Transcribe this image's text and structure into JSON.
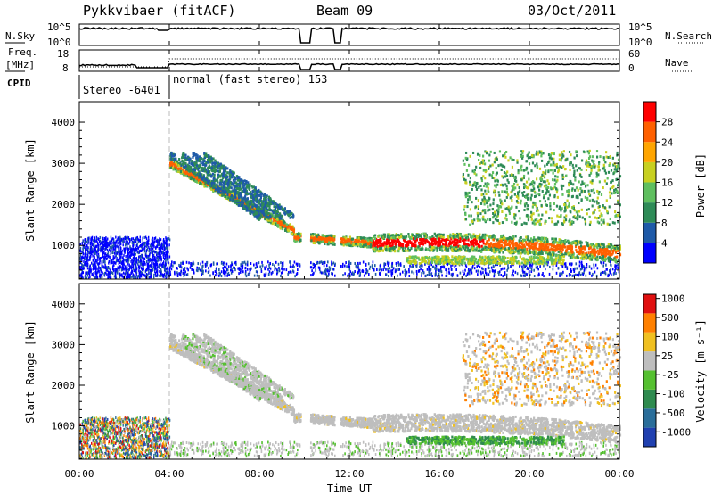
{
  "header": {
    "radar": "Pykkvibaer (fitACF)",
    "beam": "Beam 09",
    "date": "03/Oct/2011"
  },
  "strips": {
    "nsky_label": "N.Sky",
    "nsky_ticks": [
      "10^5",
      "10^0"
    ],
    "nsearch_label": "N.Search",
    "nsearch_ticks": [
      "10^5",
      "10^0"
    ],
    "freq_label": "Freq.",
    "freq_unit": "[MHz]",
    "freq_ticks": [
      "18",
      "8"
    ],
    "nave_label": "Nave",
    "nave_ticks": [
      "60",
      "0"
    ],
    "cpid_label": "CPID",
    "cpid_segments": [
      {
        "label": "Stereo -6401",
        "start_h": 0,
        "end_h": 4
      },
      {
        "label": "normal (fast stereo) 153",
        "start_h": 4,
        "end_h": 24
      }
    ]
  },
  "chart_data": [
    {
      "type": "heatmap",
      "name": "power",
      "ylabel": "Slant Range [km]",
      "colorbar_label": "Power [dB]",
      "colorbar_ticks": [
        "4",
        "8",
        "12",
        "16",
        "20",
        "24",
        "28"
      ],
      "colorbar_range": [
        0,
        30
      ],
      "colors": [
        "#0000ff",
        "#1e5aa8",
        "#2e8b57",
        "#5fbf5f",
        "#c8d020",
        "#ffa500",
        "#ff6000",
        "#ff0000"
      ],
      "ylim": [
        180,
        4500
      ],
      "yticks": [
        "1000",
        "2000",
        "3000",
        "4000"
      ]
    },
    {
      "type": "heatmap",
      "name": "velocity",
      "ylabel": "Slant Range [km]",
      "colorbar_label": "Velocity [m s⁻¹]",
      "colorbar_ticks": [
        "1000",
        "500",
        "100",
        "25",
        "-25",
        "-100",
        "-500",
        "-1000"
      ],
      "colors": [
        "#2040b0",
        "#2a6e9a",
        "#2f8b4f",
        "#55c030",
        "#bebebe",
        "#f0c020",
        "#ff8000",
        "#e01010"
      ],
      "ylim": [
        180,
        4500
      ],
      "yticks": [
        "1000",
        "2000",
        "3000",
        "4000"
      ]
    }
  ],
  "time_axis": {
    "ticks": [
      "00:00",
      "04:00",
      "08:00",
      "12:00",
      "16:00",
      "20:00",
      "00:00"
    ],
    "label": "Time UT",
    "range_h": [
      0,
      24
    ]
  }
}
